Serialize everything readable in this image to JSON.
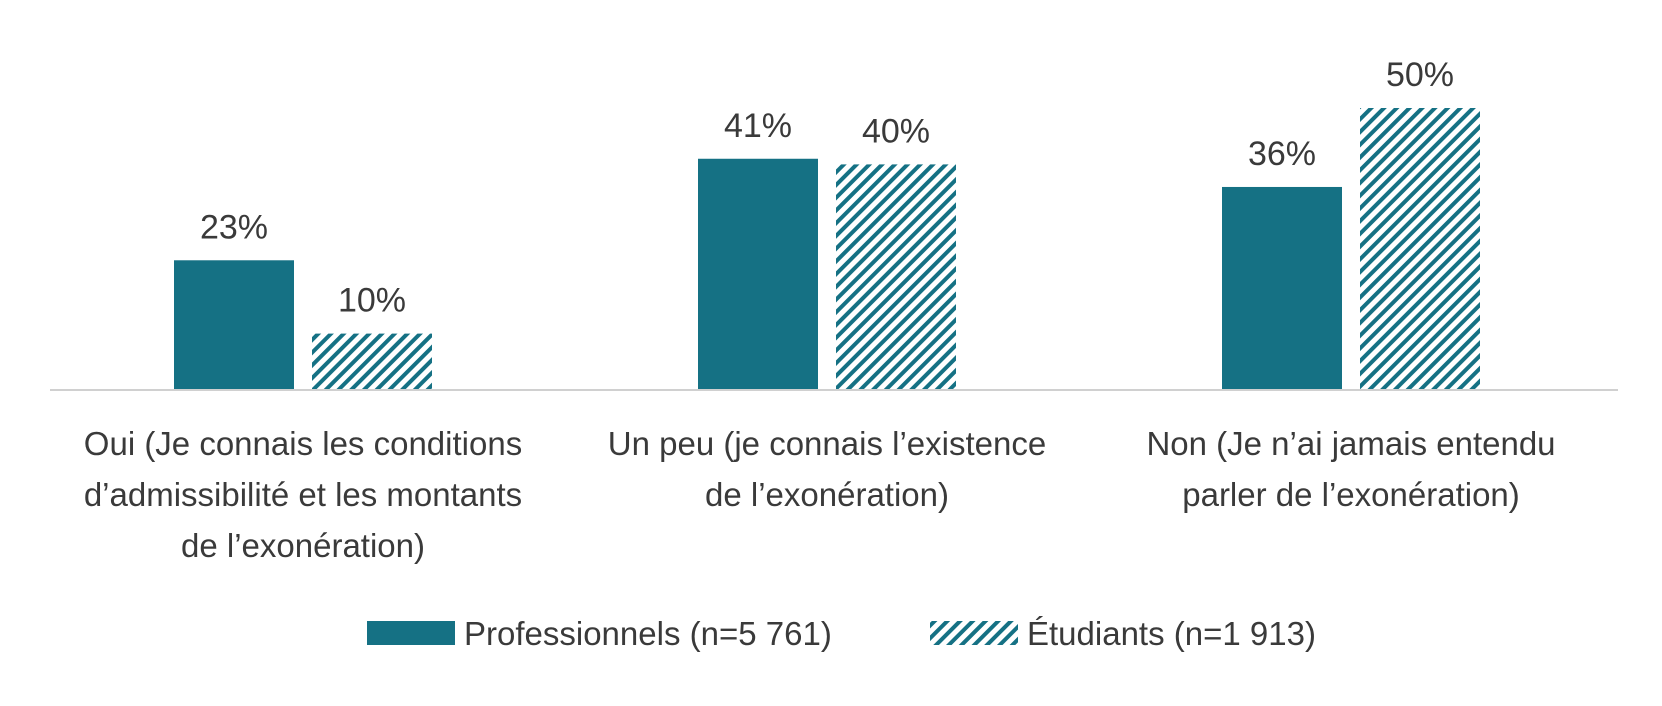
{
  "chart_data": {
    "type": "bar",
    "categories": [
      [
        "Oui (Je connais les conditions",
        "d’admissibilité et les montants",
        "de l’exonération)"
      ],
      [
        "Un peu (je connais l’existence",
        "de l’exonération)"
      ],
      [
        "Non (Je n’ai jamais entendu",
        "parler de l’exonération)"
      ]
    ],
    "series": [
      {
        "name": "Professionnels (n=5 761)",
        "values": [
          23,
          41,
          36
        ],
        "labels": [
          "23%",
          "41%",
          "36%"
        ],
        "fill": "solid",
        "color": "#157184"
      },
      {
        "name": "Étudiants (n=1 913)",
        "values": [
          10,
          40,
          50
        ],
        "labels": [
          "10%",
          "40%",
          "50%"
        ],
        "fill": "hatched",
        "color": "#157184"
      }
    ],
    "ylim": [
      0,
      50
    ],
    "grid": false,
    "legend_position": "bottom",
    "axis_color": "#d0d0d0",
    "title": "",
    "xlabel": "",
    "ylabel": ""
  }
}
